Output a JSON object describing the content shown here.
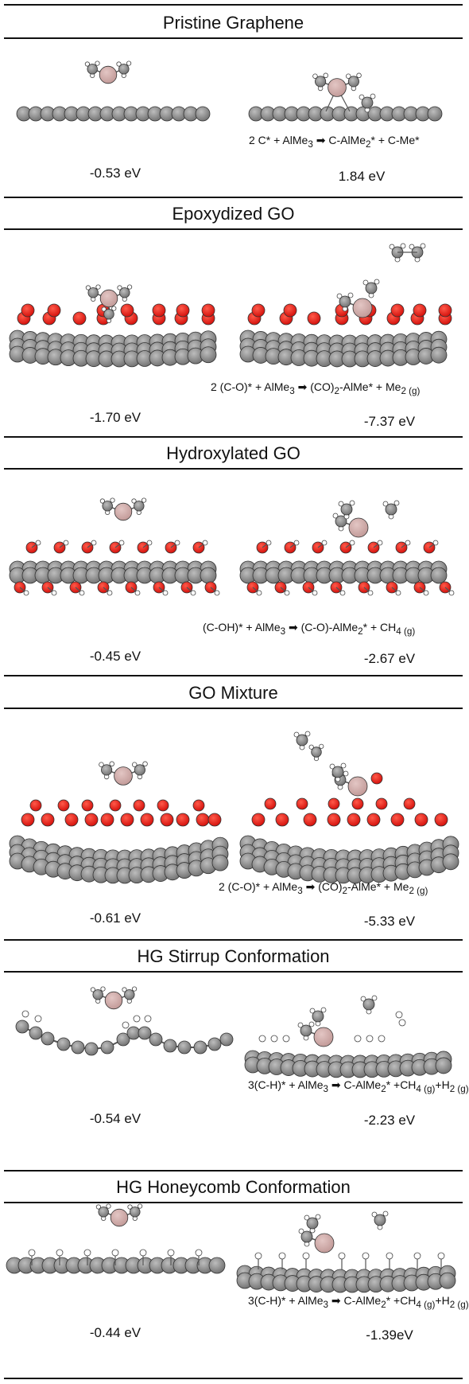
{
  "panels": [
    {
      "title": "Pristine Graphene",
      "left_energy": "-0.53 eV",
      "right_energy": "1.84 eV",
      "reaction": {
        "lhs": "2 C* + AlMe",
        "lhs_sub": "3",
        "rhs_a": "C-AlMe",
        "rhs_a_sub": "2",
        "rhs_b": "* + C-Me*",
        "rhs_b_sub": ""
      }
    },
    {
      "title": "Epoxydized GO",
      "left_energy": "-1.70 eV",
      "right_energy": "-7.37 eV",
      "reaction": {
        "lhs": "2 (C-O)* + AlMe",
        "lhs_sub": "3",
        "rhs_a": "(CO)",
        "rhs_a_sub": "2",
        "rhs_b": "-AlMe* + Me",
        "rhs_b_sub": "2 (g)"
      }
    },
    {
      "title": "Hydroxylated GO",
      "left_energy": "-0.45 eV",
      "right_energy": "-2.67 eV",
      "reaction": {
        "lhs": "(C-OH)* + AlMe",
        "lhs_sub": "3",
        "rhs_a": "(C-O)-AlMe",
        "rhs_a_sub": "2",
        "rhs_b": "* + CH",
        "rhs_b_sub": "4 (g)"
      }
    },
    {
      "title": "GO Mixture",
      "left_energy": "-0.61 eV",
      "right_energy": "-5.33 eV",
      "reaction": {
        "lhs": "2 (C-O)* + AlMe",
        "lhs_sub": "3",
        "rhs_a": "(CO)",
        "rhs_a_sub": "2",
        "rhs_b": "-AlMe* + Me",
        "rhs_b_sub": "2 (g)"
      }
    },
    {
      "title": "HG Stirrup Conformation",
      "left_energy": "-0.54 eV",
      "right_energy": "-2.23 eV",
      "reaction": {
        "lhs": "3(C-H)* + AlMe",
        "lhs_sub": "3",
        "rhs_a": "C-AlMe",
        "rhs_a_sub": "2",
        "rhs_b": "* +CH",
        "rhs_b_sub": "4 (g)",
        "rhs_c": "+H",
        "rhs_c_sub": "2 (g)"
      }
    },
    {
      "title": "HG Honeycomb Conformation",
      "left_energy": "-0.44 eV",
      "right_energy": "-1.39eV",
      "reaction": {
        "lhs": "3(C-H)* + AlMe",
        "lhs_sub": "3",
        "rhs_a": "C-AlMe",
        "rhs_a_sub": "2",
        "rhs_b": "* +CH",
        "rhs_b_sub": "4 (g)",
        "rhs_c": "+H",
        "rhs_c_sub": "2 (g)"
      }
    }
  ],
  "colors": {
    "carbon": "#8a8a8a",
    "carbon_dark": "#4a4a4a",
    "oxygen": "#e8120f",
    "aluminum": "#cfaaa8",
    "hydrogen": "#ffffff",
    "rule": "#111111"
  }
}
